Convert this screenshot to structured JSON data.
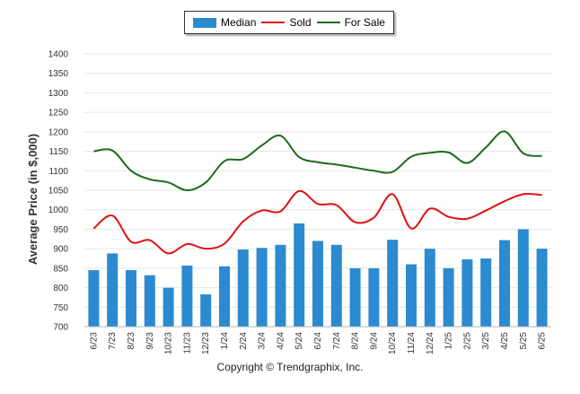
{
  "legend": {
    "median_label": "Median",
    "sold_label": "Sold",
    "for_sale_label": "For Sale"
  },
  "colors": {
    "median": "#2b8ad0",
    "sold": "#e01010",
    "for_sale": "#1a6b1a",
    "grid": "#e6e6e6"
  },
  "credit": "Copyright © Trendgraphix, Inc.",
  "chart_data": {
    "type": "bar",
    "title": "",
    "xlabel": "",
    "ylabel": "Average Price (in $,000)",
    "ylim": [
      700,
      1400
    ],
    "yticks": [
      700,
      750,
      800,
      850,
      900,
      950,
      1000,
      1050,
      1100,
      1150,
      1200,
      1250,
      1300,
      1350,
      1400
    ],
    "grid": true,
    "legend_position": "top-center",
    "categories": [
      "6/23",
      "7/23",
      "8/23",
      "9/23",
      "10/23",
      "11/23",
      "12/23",
      "1/24",
      "2/24",
      "3/24",
      "4/24",
      "5/24",
      "6/24",
      "7/24",
      "8/24",
      "9/24",
      "10/24",
      "11/24",
      "12/24",
      "1/25",
      "2/25",
      "3/25",
      "4/25",
      "5/25",
      "6/25"
    ],
    "series": [
      {
        "name": "Median",
        "type": "bar",
        "values": [
          845,
          888,
          845,
          832,
          800,
          857,
          783,
          855,
          898,
          902,
          910,
          965,
          920,
          910,
          850,
          850,
          923,
          860,
          900,
          850,
          873,
          875,
          922,
          950,
          900
        ]
      },
      {
        "name": "Sold",
        "type": "line",
        "values": [
          952,
          985,
          918,
          922,
          888,
          912,
          900,
          913,
          970,
          998,
          996,
          1048,
          1015,
          1012,
          968,
          980,
          1040,
          952,
          1003,
          982,
          977,
          998,
          1022,
          1040,
          1038
        ]
      },
      {
        "name": "For Sale",
        "type": "line",
        "values": [
          1150,
          1152,
          1100,
          1078,
          1070,
          1050,
          1070,
          1125,
          1130,
          1165,
          1190,
          1135,
          1122,
          1116,
          1108,
          1100,
          1097,
          1136,
          1146,
          1147,
          1120,
          1160,
          1201,
          1145,
          1138
        ]
      }
    ]
  }
}
